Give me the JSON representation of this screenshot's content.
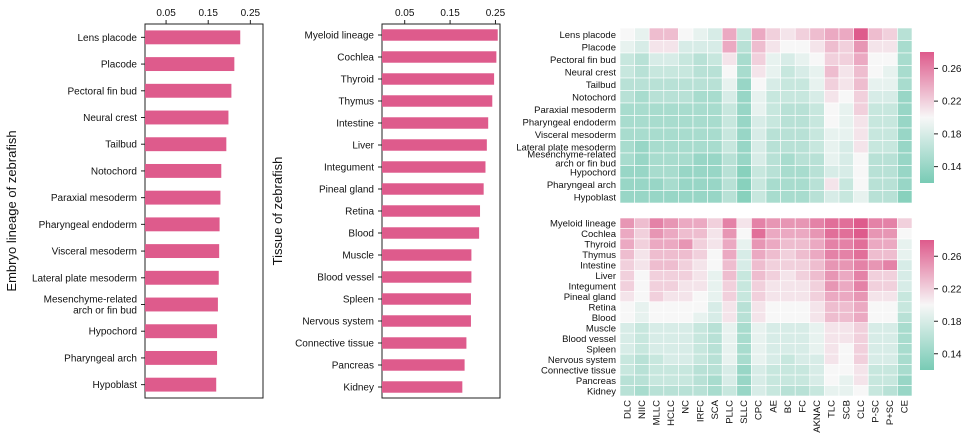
{
  "colors": {
    "bar": "#de5b8c",
    "heat_low": "#78cbb5",
    "heat_mid": "#f7f7f7",
    "heat_high": "#de5b8c"
  },
  "chart_data": [
    {
      "type": "bar",
      "orientation": "horizontal",
      "ylabel": "Embryo lineage of zebrafish",
      "xlim": [
        0,
        0.28
      ],
      "xticks": [
        "0.05",
        "0.15",
        "0.25"
      ],
      "categories": [
        "Lens placode",
        "Placode",
        "Pectoral fin bud",
        "Neural crest",
        "Tailbud",
        "Notochord",
        "Paraxial mesoderm",
        "Pharyngeal endoderm",
        "Visceral mesoderm",
        "Lateral plate mesoderm",
        "Mesenchyme-related arch or fin bud",
        "Hypochord",
        "Pharyngeal arch",
        "Hypoblast"
      ],
      "values": [
        0.226,
        0.212,
        0.205,
        0.198,
        0.193,
        0.181,
        0.179,
        0.177,
        0.176,
        0.175,
        0.173,
        0.171,
        0.171,
        0.169
      ]
    },
    {
      "type": "bar",
      "orientation": "horizontal",
      "ylabel": "Tissue of zebrafish",
      "xlim": [
        0,
        0.26
      ],
      "xticks": [
        "0.05",
        "0.15",
        "0.25"
      ],
      "categories": [
        "Myeloid lineage",
        "Cochlea",
        "Thyroid",
        "Thymus",
        "Intestine",
        "Liver",
        "Integument",
        "Pineal gland",
        "Retina",
        "Blood",
        "Muscle",
        "Blood vessel",
        "Spleen",
        "Nervous system",
        "Connective tissue",
        "Pancreas",
        "Kidney"
      ],
      "values": [
        0.255,
        0.252,
        0.247,
        0.243,
        0.234,
        0.231,
        0.228,
        0.224,
        0.216,
        0.214,
        0.197,
        0.197,
        0.196,
        0.196,
        0.186,
        0.182,
        0.177
      ]
    },
    {
      "type": "heatmap",
      "rows": [
        "Lens placode",
        "Placode",
        "Pectoral fin bud",
        "Neural crest",
        "Tailbud",
        "Notochord",
        "Paraxial mesoderm",
        "Pharyngeal endoderm",
        "Visceral mesoderm",
        "Lateral plate mesoderm",
        "Mesenchyme-related arch or fin bud",
        "Hypochord",
        "Pharyngeal arch",
        "Hypoblast"
      ],
      "columns": [
        "DLC",
        "NIIC",
        "MLLC",
        "HCLC",
        "NC",
        "IRFC",
        "SCA",
        "PLLC",
        "SLLC",
        "CPC",
        "AE",
        "BC",
        "FC",
        "AKNAC",
        "TLC",
        "SCB",
        "CLC",
        "P-SC",
        "P+SC",
        "CE"
      ],
      "colorbar_ticks": [
        "0.26",
        "0.22",
        "0.18",
        "0.14"
      ],
      "colorbar_range": [
        0.12,
        0.28
      ],
      "values": [
        [
          0.2,
          0.19,
          0.23,
          0.23,
          0.2,
          0.19,
          0.18,
          0.24,
          0.17,
          0.24,
          0.22,
          0.21,
          0.22,
          0.23,
          0.24,
          0.24,
          0.28,
          0.23,
          0.22,
          0.16
        ],
        [
          0.19,
          0.18,
          0.21,
          0.21,
          0.18,
          0.18,
          0.18,
          0.24,
          0.16,
          0.23,
          0.21,
          0.2,
          0.2,
          0.21,
          0.23,
          0.22,
          0.25,
          0.21,
          0.21,
          0.15
        ],
        [
          0.17,
          0.16,
          0.18,
          0.18,
          0.17,
          0.16,
          0.17,
          0.21,
          0.15,
          0.22,
          0.19,
          0.18,
          0.19,
          0.2,
          0.22,
          0.22,
          0.24,
          0.2,
          0.2,
          0.15
        ],
        [
          0.17,
          0.16,
          0.17,
          0.17,
          0.17,
          0.16,
          0.16,
          0.2,
          0.15,
          0.21,
          0.19,
          0.17,
          0.18,
          0.19,
          0.23,
          0.21,
          0.23,
          0.2,
          0.19,
          0.15
        ],
        [
          0.16,
          0.16,
          0.16,
          0.16,
          0.16,
          0.16,
          0.16,
          0.19,
          0.14,
          0.2,
          0.18,
          0.17,
          0.17,
          0.19,
          0.22,
          0.21,
          0.23,
          0.19,
          0.19,
          0.15
        ],
        [
          0.16,
          0.15,
          0.16,
          0.16,
          0.16,
          0.15,
          0.15,
          0.18,
          0.14,
          0.19,
          0.17,
          0.17,
          0.17,
          0.18,
          0.21,
          0.2,
          0.22,
          0.18,
          0.18,
          0.14
        ],
        [
          0.15,
          0.15,
          0.15,
          0.15,
          0.15,
          0.15,
          0.15,
          0.17,
          0.14,
          0.19,
          0.17,
          0.16,
          0.16,
          0.17,
          0.2,
          0.19,
          0.22,
          0.17,
          0.17,
          0.14
        ],
        [
          0.15,
          0.15,
          0.15,
          0.15,
          0.15,
          0.15,
          0.15,
          0.17,
          0.14,
          0.18,
          0.17,
          0.16,
          0.16,
          0.17,
          0.2,
          0.19,
          0.21,
          0.17,
          0.17,
          0.14
        ],
        [
          0.15,
          0.15,
          0.15,
          0.15,
          0.15,
          0.15,
          0.15,
          0.17,
          0.14,
          0.18,
          0.16,
          0.16,
          0.16,
          0.17,
          0.19,
          0.19,
          0.21,
          0.17,
          0.17,
          0.14
        ],
        [
          0.15,
          0.14,
          0.15,
          0.15,
          0.15,
          0.15,
          0.15,
          0.17,
          0.14,
          0.18,
          0.16,
          0.16,
          0.16,
          0.17,
          0.19,
          0.18,
          0.21,
          0.17,
          0.17,
          0.14
        ],
        [
          0.15,
          0.14,
          0.15,
          0.15,
          0.15,
          0.14,
          0.14,
          0.16,
          0.14,
          0.18,
          0.16,
          0.15,
          0.16,
          0.16,
          0.19,
          0.18,
          0.2,
          0.16,
          0.16,
          0.14
        ],
        [
          0.14,
          0.14,
          0.15,
          0.15,
          0.14,
          0.14,
          0.14,
          0.16,
          0.13,
          0.17,
          0.16,
          0.15,
          0.15,
          0.16,
          0.18,
          0.18,
          0.2,
          0.16,
          0.16,
          0.14
        ],
        [
          0.14,
          0.14,
          0.14,
          0.15,
          0.14,
          0.14,
          0.14,
          0.16,
          0.13,
          0.17,
          0.15,
          0.15,
          0.15,
          0.16,
          0.21,
          0.17,
          0.2,
          0.16,
          0.16,
          0.14
        ],
        [
          0.14,
          0.14,
          0.14,
          0.14,
          0.14,
          0.14,
          0.14,
          0.16,
          0.13,
          0.17,
          0.15,
          0.15,
          0.15,
          0.16,
          0.18,
          0.17,
          0.19,
          0.16,
          0.16,
          0.13
        ]
      ]
    },
    {
      "type": "heatmap",
      "rows": [
        "Myeloid lineage",
        "Cochlea",
        "Thyroid",
        "Thymus",
        "Intestine",
        "Liver",
        "Integument",
        "Pineal gland",
        "Retina",
        "Blood",
        "Muscle",
        "Blood vessel",
        "Spleen",
        "Nervous system",
        "Connective tissue",
        "Pancreas",
        "Kidney"
      ],
      "columns": [
        "DLC",
        "NIIC",
        "MLLC",
        "HCLC",
        "NC",
        "IRFC",
        "SCA",
        "PLLC",
        "SLLC",
        "CPC",
        "AE",
        "BC",
        "FC",
        "AKNAC",
        "TLC",
        "SCB",
        "CLC",
        "P-SC",
        "P+SC",
        "CE"
      ],
      "colorbar_ticks": [
        "0.26",
        "0.22",
        "0.18",
        "0.14"
      ],
      "colorbar_range": [
        0.12,
        0.28
      ],
      "values": [
        [
          0.25,
          0.23,
          0.26,
          0.25,
          0.24,
          0.24,
          0.22,
          0.26,
          0.21,
          0.26,
          0.25,
          0.25,
          0.25,
          0.26,
          0.27,
          0.27,
          0.28,
          0.26,
          0.26,
          0.22
        ],
        [
          0.24,
          0.22,
          0.25,
          0.24,
          0.23,
          0.23,
          0.21,
          0.25,
          0.2,
          0.27,
          0.24,
          0.24,
          0.24,
          0.25,
          0.27,
          0.27,
          0.28,
          0.25,
          0.25,
          0.2
        ],
        [
          0.24,
          0.22,
          0.24,
          0.24,
          0.25,
          0.22,
          0.21,
          0.24,
          0.19,
          0.25,
          0.24,
          0.23,
          0.23,
          0.24,
          0.26,
          0.26,
          0.27,
          0.24,
          0.24,
          0.19
        ],
        [
          0.23,
          0.21,
          0.23,
          0.23,
          0.23,
          0.22,
          0.2,
          0.24,
          0.18,
          0.24,
          0.23,
          0.22,
          0.23,
          0.24,
          0.26,
          0.26,
          0.27,
          0.23,
          0.23,
          0.19
        ],
        [
          0.22,
          0.21,
          0.23,
          0.23,
          0.22,
          0.21,
          0.2,
          0.23,
          0.18,
          0.23,
          0.22,
          0.22,
          0.22,
          0.23,
          0.25,
          0.25,
          0.26,
          0.25,
          0.26,
          0.18
        ],
        [
          0.22,
          0.2,
          0.22,
          0.22,
          0.22,
          0.21,
          0.19,
          0.23,
          0.17,
          0.23,
          0.22,
          0.21,
          0.22,
          0.23,
          0.25,
          0.24,
          0.26,
          0.22,
          0.22,
          0.18
        ],
        [
          0.22,
          0.2,
          0.22,
          0.22,
          0.21,
          0.21,
          0.19,
          0.22,
          0.17,
          0.22,
          0.21,
          0.21,
          0.21,
          0.22,
          0.25,
          0.24,
          0.26,
          0.22,
          0.22,
          0.18
        ],
        [
          0.21,
          0.2,
          0.22,
          0.21,
          0.21,
          0.2,
          0.19,
          0.22,
          0.17,
          0.22,
          0.21,
          0.21,
          0.21,
          0.22,
          0.24,
          0.24,
          0.25,
          0.21,
          0.21,
          0.17
        ],
        [
          0.2,
          0.19,
          0.2,
          0.2,
          0.2,
          0.2,
          0.18,
          0.21,
          0.16,
          0.21,
          0.2,
          0.2,
          0.2,
          0.21,
          0.23,
          0.23,
          0.24,
          0.2,
          0.2,
          0.17
        ],
        [
          0.2,
          0.19,
          0.2,
          0.2,
          0.2,
          0.19,
          0.18,
          0.21,
          0.16,
          0.21,
          0.2,
          0.2,
          0.2,
          0.21,
          0.23,
          0.23,
          0.24,
          0.2,
          0.2,
          0.16
        ],
        [
          0.18,
          0.17,
          0.18,
          0.18,
          0.18,
          0.17,
          0.16,
          0.19,
          0.15,
          0.19,
          0.18,
          0.18,
          0.18,
          0.19,
          0.21,
          0.21,
          0.22,
          0.18,
          0.18,
          0.15
        ],
        [
          0.18,
          0.17,
          0.18,
          0.18,
          0.18,
          0.17,
          0.16,
          0.19,
          0.15,
          0.19,
          0.18,
          0.18,
          0.18,
          0.19,
          0.21,
          0.21,
          0.22,
          0.18,
          0.18,
          0.15
        ],
        [
          0.18,
          0.17,
          0.18,
          0.18,
          0.18,
          0.17,
          0.16,
          0.19,
          0.15,
          0.19,
          0.18,
          0.18,
          0.18,
          0.19,
          0.21,
          0.2,
          0.22,
          0.18,
          0.18,
          0.15
        ],
        [
          0.17,
          0.16,
          0.17,
          0.18,
          0.18,
          0.17,
          0.16,
          0.19,
          0.15,
          0.19,
          0.18,
          0.17,
          0.18,
          0.18,
          0.21,
          0.2,
          0.22,
          0.18,
          0.18,
          0.15
        ],
        [
          0.17,
          0.16,
          0.17,
          0.17,
          0.17,
          0.16,
          0.16,
          0.18,
          0.14,
          0.18,
          0.17,
          0.17,
          0.17,
          0.18,
          0.2,
          0.2,
          0.21,
          0.17,
          0.17,
          0.15
        ],
        [
          0.16,
          0.16,
          0.17,
          0.17,
          0.17,
          0.16,
          0.15,
          0.18,
          0.14,
          0.18,
          0.17,
          0.17,
          0.17,
          0.18,
          0.2,
          0.19,
          0.21,
          0.17,
          0.17,
          0.14
        ],
        [
          0.16,
          0.15,
          0.16,
          0.16,
          0.16,
          0.16,
          0.15,
          0.17,
          0.14,
          0.18,
          0.17,
          0.16,
          0.16,
          0.17,
          0.19,
          0.19,
          0.2,
          0.17,
          0.16,
          0.14
        ]
      ]
    }
  ]
}
